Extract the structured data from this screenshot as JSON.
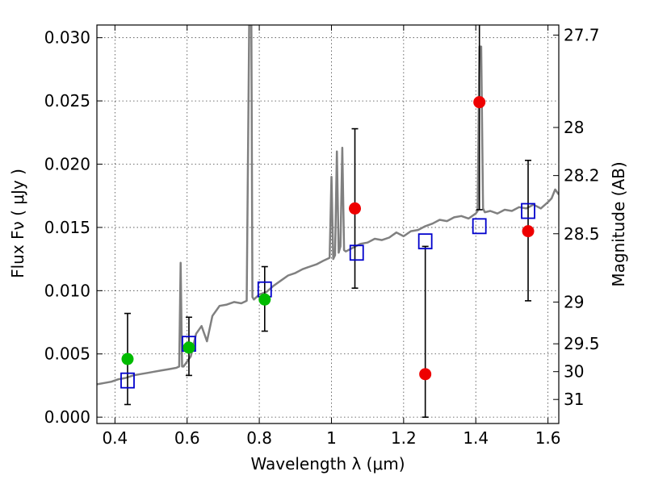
{
  "chart_data": {
    "type": "scatter",
    "xlabel": "Wavelength  λ (μm)",
    "ylabel": "Flux  Fν  ( μJy )",
    "y2label": "Magnitude (AB)",
    "xlim": [
      0.35,
      1.63
    ],
    "ylim": [
      -0.0005,
      0.031
    ],
    "x_ticks": [
      0.4,
      0.6,
      0.8,
      1.0,
      1.2,
      1.4,
      1.6
    ],
    "x_tick_labels": [
      "0.4",
      "0.6",
      "0.8",
      "1",
      "1.2",
      "1.4",
      "1.6"
    ],
    "y_ticks": [
      0.0,
      0.005,
      0.01,
      0.015,
      0.02,
      0.025,
      0.03
    ],
    "y_tick_labels": [
      "0.000",
      "0.005",
      "0.010",
      "0.015",
      "0.020",
      "0.025",
      "0.030"
    ],
    "y2_ticks": [
      {
        "label": "27.7",
        "flux": 0.0302
      },
      {
        "label": "28",
        "flux": 0.0229
      },
      {
        "label": "28.2",
        "flux": 0.0191
      },
      {
        "label": "28.5",
        "flux": 0.0145
      },
      {
        "label": "29",
        "flux": 0.0091
      },
      {
        "label": "29.5",
        "flux": 0.0058
      },
      {
        "label": "30",
        "flux": 0.0036
      },
      {
        "label": "31",
        "flux": 0.0014
      }
    ],
    "grid": true,
    "colors": {
      "spectrum": "#808080",
      "model_boxes": "#0000cc",
      "green_points": "#00bb00",
      "red_points": "#ee0000",
      "errorbars": "#000000"
    },
    "spectrum": {
      "name": "",
      "x": [
        0.35,
        0.37,
        0.39,
        0.41,
        0.43,
        0.45,
        0.47,
        0.49,
        0.51,
        0.53,
        0.55,
        0.57,
        0.578,
        0.582,
        0.586,
        0.59,
        0.61,
        0.625,
        0.64,
        0.655,
        0.67,
        0.69,
        0.71,
        0.73,
        0.75,
        0.765,
        0.772,
        0.775,
        0.778,
        0.781,
        0.785,
        0.8,
        0.82,
        0.84,
        0.86,
        0.88,
        0.9,
        0.92,
        0.94,
        0.96,
        0.98,
        0.995,
        1.0,
        1.005,
        1.01,
        1.015,
        1.02,
        1.025,
        1.03,
        1.035,
        1.04,
        1.06,
        1.08,
        1.1,
        1.12,
        1.14,
        1.16,
        1.18,
        1.2,
        1.22,
        1.24,
        1.26,
        1.28,
        1.3,
        1.32,
        1.34,
        1.36,
        1.38,
        1.4,
        1.405,
        1.41,
        1.415,
        1.42,
        1.425,
        1.44,
        1.46,
        1.48,
        1.5,
        1.52,
        1.54,
        1.56,
        1.58,
        1.6,
        1.61,
        1.62,
        1.63
      ],
      "y": [
        0.0026,
        0.0027,
        0.0028,
        0.003,
        0.0031,
        0.0033,
        0.0034,
        0.0035,
        0.0036,
        0.0037,
        0.0038,
        0.0039,
        0.004,
        0.0122,
        0.004,
        0.004,
        0.0048,
        0.0066,
        0.0072,
        0.006,
        0.008,
        0.0088,
        0.0089,
        0.0091,
        0.009,
        0.0092,
        0.031,
        0.031,
        0.031,
        0.0095,
        0.0093,
        0.0097,
        0.0099,
        0.0104,
        0.0108,
        0.0112,
        0.0114,
        0.0117,
        0.0119,
        0.0121,
        0.0124,
        0.0126,
        0.019,
        0.0125,
        0.0128,
        0.021,
        0.013,
        0.0135,
        0.0213,
        0.0132,
        0.0131,
        0.0134,
        0.0137,
        0.0138,
        0.0141,
        0.014,
        0.0142,
        0.0146,
        0.0143,
        0.0147,
        0.0148,
        0.0151,
        0.0153,
        0.0156,
        0.0155,
        0.0158,
        0.0159,
        0.0157,
        0.0161,
        0.0163,
        0.0293,
        0.0293,
        0.0165,
        0.0162,
        0.0163,
        0.0161,
        0.0164,
        0.0163,
        0.0166,
        0.0165,
        0.0168,
        0.0165,
        0.017,
        0.0173,
        0.018,
        0.0176
      ]
    },
    "model_boxes": {
      "name": "",
      "x": [
        0.435,
        0.605,
        0.815,
        1.07,
        1.26,
        1.41,
        1.545
      ],
      "y": [
        0.0029,
        0.0058,
        0.0101,
        0.013,
        0.0139,
        0.0151,
        0.0163
      ]
    },
    "green_points": {
      "name": "",
      "x": [
        0.435,
        0.605,
        0.815
      ],
      "y": [
        0.0046,
        0.0055,
        0.0093
      ],
      "err_low": [
        0.0036,
        0.0022,
        0.0025
      ],
      "err_high": [
        0.0036,
        0.0024,
        0.0026
      ]
    },
    "red_points": {
      "name": "",
      "x": [
        1.065,
        1.26,
        1.41,
        1.545
      ],
      "y": [
        0.0165,
        0.0034,
        0.0249,
        0.0147
      ],
      "err_low": [
        0.0063,
        0.0034,
        0.0085,
        0.0055
      ],
      "err_high": [
        0.0063,
        0.0101,
        0.007,
        0.0056
      ]
    }
  }
}
